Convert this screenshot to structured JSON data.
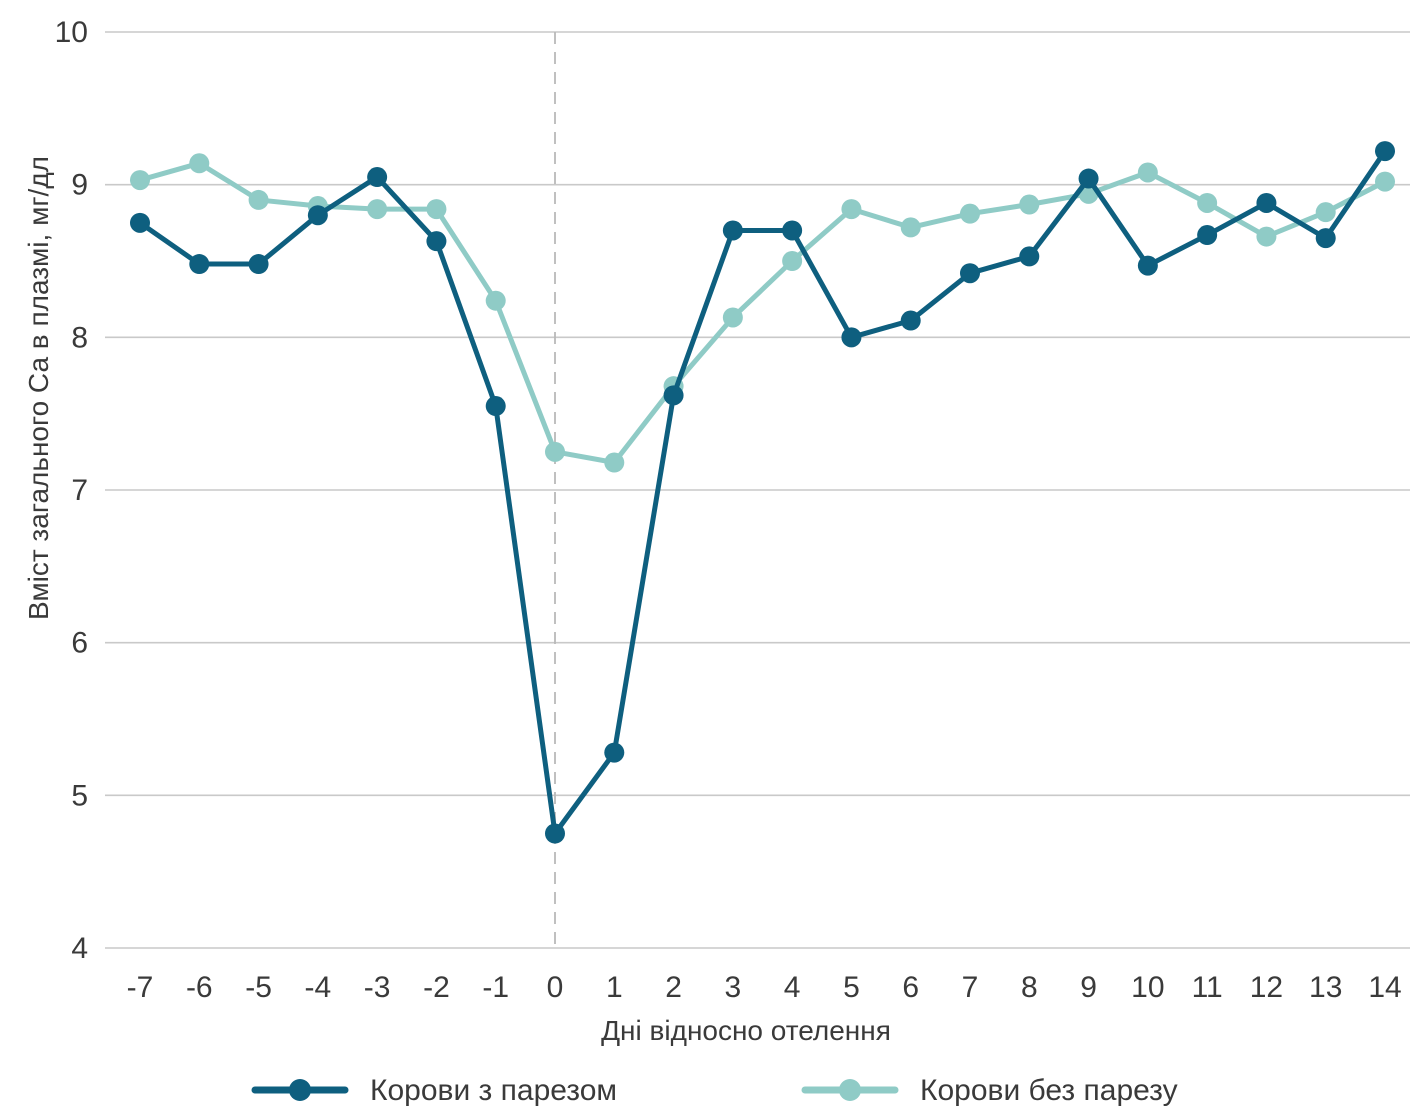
{
  "chart_data": {
    "type": "line",
    "title": "",
    "xlabel": "Дні відносно отелення",
    "ylabel": "Вміст загального Са в плазмі, мг/дл",
    "x": [
      -7,
      -6,
      -5,
      -4,
      -3,
      -2,
      -1,
      0,
      1,
      2,
      3,
      4,
      5,
      6,
      7,
      8,
      9,
      10,
      11,
      12,
      13,
      14
    ],
    "x_tick_labels": [
      "-7",
      "-6",
      "-5",
      "-4",
      "-3",
      "-2",
      "-1",
      "0",
      "1",
      "2",
      "3",
      "4",
      "5",
      "6",
      "7",
      "8",
      "9",
      "10",
      "11",
      "12",
      "13",
      "14"
    ],
    "ylim": [
      4,
      10
    ],
    "y_ticks": [
      4,
      5,
      6,
      7,
      8,
      9,
      10
    ],
    "y_tick_labels": [
      "4",
      "5",
      "6",
      "7",
      "8",
      "9",
      "10"
    ],
    "grid": "horizontal",
    "reference_line": {
      "x": 0,
      "style": "dashed"
    },
    "legend_position": "bottom",
    "series": [
      {
        "name": "Корови з парезом",
        "color": "#0e5f7f",
        "values": [
          8.75,
          8.48,
          8.48,
          8.8,
          9.05,
          8.63,
          7.55,
          4.75,
          5.28,
          7.62,
          8.7,
          8.7,
          8.0,
          8.11,
          8.42,
          8.53,
          9.04,
          8.47,
          8.67,
          8.88,
          8.65,
          9.22
        ]
      },
      {
        "name": "Корови без парезу",
        "color": "#8fcbc6",
        "values": [
          9.03,
          9.14,
          8.9,
          8.86,
          8.84,
          8.84,
          8.24,
          7.25,
          7.18,
          7.68,
          8.13,
          8.5,
          8.84,
          8.72,
          8.81,
          8.87,
          8.94,
          9.08,
          8.88,
          8.66,
          8.82,
          9.02
        ]
      }
    ]
  }
}
